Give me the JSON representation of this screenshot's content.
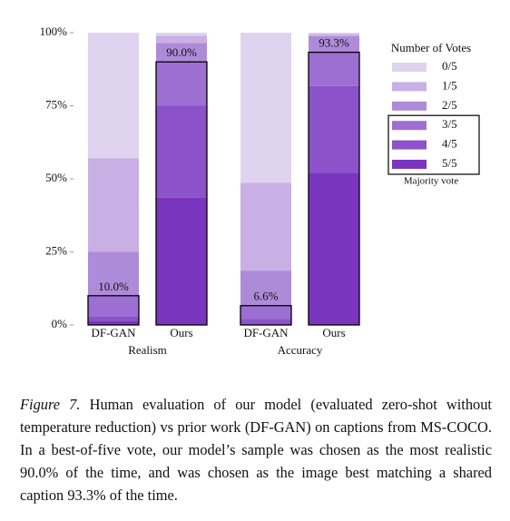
{
  "chart_data": {
    "type": "stacked-bar",
    "categories": [
      "DF-GAN",
      "Ours",
      "DF-GAN",
      "Ours"
    ],
    "groups": [
      {
        "name": "Realism",
        "members": [
          0,
          1
        ]
      },
      {
        "name": "Accuracy",
        "members": [
          2,
          3
        ]
      }
    ],
    "series": [
      {
        "name": "5/5",
        "color": "#7a35be",
        "values": [
          1.5,
          43.5,
          0.5,
          52
        ]
      },
      {
        "name": "4/5",
        "color": "#8b52c9",
        "values": [
          1.5,
          31.5,
          1.5,
          29.7
        ]
      },
      {
        "name": "3/5",
        "color": "#9d6fd2",
        "values": [
          7,
          15,
          4.6,
          11.6
        ]
      },
      {
        "name": "2/5",
        "color": "#ae8bd9",
        "values": [
          15,
          6.5,
          12,
          5.5
        ]
      },
      {
        "name": "1/5",
        "color": "#c8b0e5",
        "values": [
          32,
          2.5,
          30,
          0.8
        ]
      },
      {
        "name": "0/5",
        "color": "#e0d3ef",
        "values": [
          43,
          1,
          51.4,
          0.4
        ]
      }
    ],
    "majority": {
      "values": [
        10.0,
        90.0,
        6.6,
        93.3
      ],
      "value_labels": [
        "10.0%",
        "90.0%",
        "6.6%",
        "93.3%"
      ],
      "legend": "Majority vote"
    },
    "legend_title": "Number of Votes",
    "legend_position": "right",
    "ylim": [
      0,
      100
    ],
    "yticks": [
      {
        "value": 0,
        "label": "0%"
      },
      {
        "value": 25,
        "label": "25%"
      },
      {
        "value": 50,
        "label": "50%"
      },
      {
        "value": 75,
        "label": "75%"
      },
      {
        "value": 100,
        "label": "100%"
      }
    ]
  },
  "caption": {
    "label": "Figure 7.",
    "text": "Human evaluation of our model (evaluated zero-shot without temperature reduction) vs prior work (DF-GAN) on captions from MS-COCO. In a best-of-five vote, our model’s sample was chosen as the most realistic 90.0% of the time, and was chosen as the image best matching a shared caption 93.3% of the time."
  }
}
